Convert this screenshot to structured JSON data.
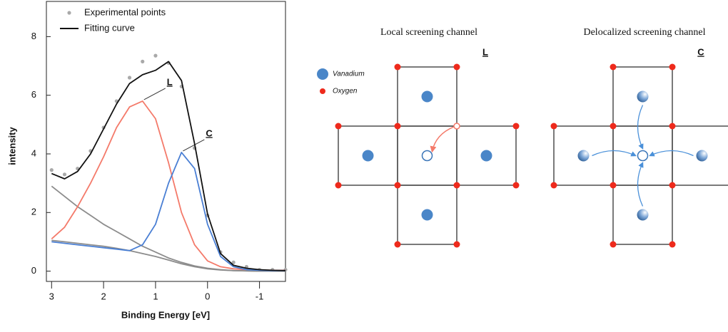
{
  "chart_data": {
    "type": "line",
    "xlabel": "Binding Energy [eV]",
    "ylabel": "intensity",
    "x": [
      3,
      2.75,
      2.5,
      2.25,
      2,
      1.75,
      1.5,
      1.25,
      1,
      0.75,
      0.5,
      0.25,
      0,
      -0.25,
      -0.5,
      -0.75,
      -1,
      -1.25,
      -1.5
    ],
    "xlim": [
      3.1,
      -1.5
    ],
    "xticks": [
      3,
      2,
      1,
      0,
      -1
    ],
    "ylim": [
      -0.35,
      9.2
    ],
    "yticks": [
      0,
      2,
      4,
      6,
      8
    ],
    "legend": "upper left",
    "series": [
      {
        "name": "Experimental points",
        "color": "#a9a9a9",
        "markers": true,
        "legend": true,
        "values": [
          3.45,
          3.3,
          3.5,
          4.1,
          4.9,
          5.8,
          6.6,
          7.15,
          7.35,
          7.1,
          6.3,
          4.2,
          1.9,
          0.65,
          0.3,
          0.15,
          0.05,
          0.05,
          0.05
        ]
      },
      {
        "color": "#8c8c8c",
        "values": [
          2.9,
          2.55,
          2.2,
          1.9,
          1.6,
          1.35,
          1.1,
          0.85,
          0.65,
          0.45,
          0.3,
          0.18,
          0.1,
          0.05,
          0.02,
          0.01,
          0,
          0,
          0
        ]
      },
      {
        "color": "#8c8c8c",
        "values": [
          1.05,
          1.0,
          0.95,
          0.9,
          0.85,
          0.78,
          0.7,
          0.6,
          0.5,
          0.38,
          0.25,
          0.15,
          0.08,
          0.04,
          0.02,
          0.01,
          0,
          0,
          0
        ]
      },
      {
        "name": "L",
        "color": "#f47a6a",
        "legend": false,
        "values": [
          1.1,
          1.5,
          2.2,
          3.0,
          3.9,
          4.9,
          5.6,
          5.8,
          5.2,
          3.7,
          2.0,
          0.9,
          0.35,
          0.15,
          0.08,
          0.05,
          0.04,
          0.03,
          0.03
        ]
      },
      {
        "name": "C",
        "color": "#4a7fd4",
        "legend": false,
        "values": [
          1.0,
          0.95,
          0.9,
          0.85,
          0.8,
          0.75,
          0.7,
          0.9,
          1.6,
          3.0,
          4.05,
          3.5,
          1.6,
          0.5,
          0.15,
          0.05,
          0.03,
          0.02,
          0.02
        ]
      },
      {
        "name": "Fitting curve",
        "color": "#111111",
        "legend": true,
        "values": [
          3.33,
          3.15,
          3.4,
          4.0,
          4.85,
          5.7,
          6.4,
          6.7,
          6.85,
          7.15,
          6.5,
          4.35,
          1.95,
          0.6,
          0.2,
          0.1,
          0.05,
          0.03,
          0.02
        ]
      }
    ]
  },
  "diagram": {
    "legend": {
      "vanadium": "Vanadium",
      "oxygen": "Oxygen"
    },
    "panels": [
      {
        "title": "Local screening channel",
        "label": "L"
      },
      {
        "title": "Delocalized screening channel",
        "label": "C"
      }
    ]
  }
}
